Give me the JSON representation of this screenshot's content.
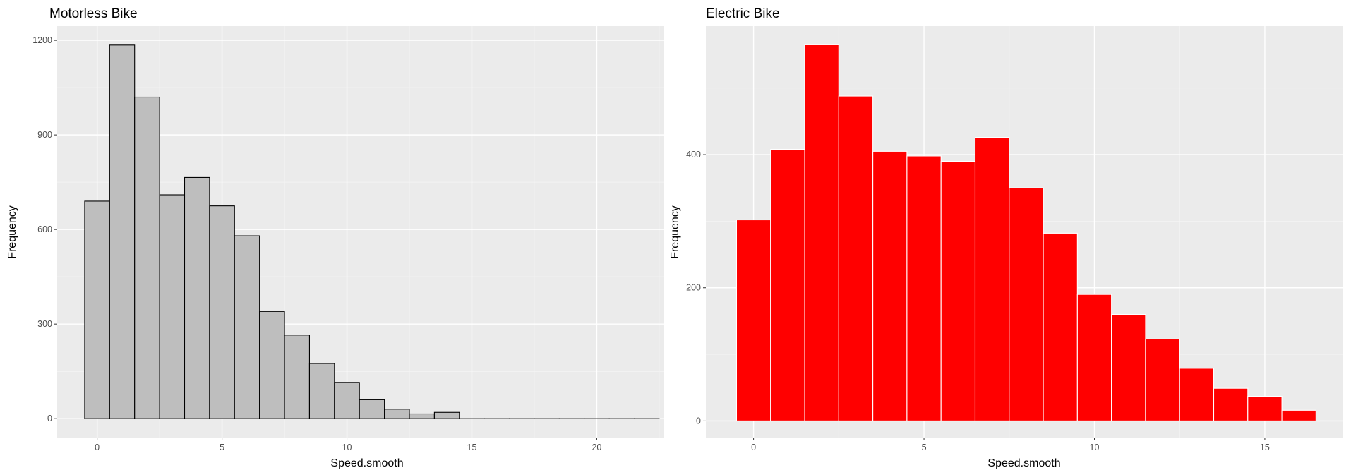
{
  "colors": {
    "panel_bg": "#ebebeb",
    "grid_major": "#ffffff",
    "grid_minor": "#f5f5f5",
    "tick_text": "#4d4d4d"
  },
  "chart_data": [
    {
      "type": "histogram",
      "title": "Motorless Bike",
      "xlabel": "Speed.smooth",
      "ylabel": "Frequency",
      "bin_width": 1,
      "bin_centers": [
        0,
        1,
        2,
        3,
        4,
        5,
        6,
        7,
        8,
        9,
        10,
        11,
        12,
        13,
        14,
        15,
        16,
        17,
        18,
        19,
        20,
        21,
        22
      ],
      "values": [
        690,
        1185,
        1020,
        710,
        765,
        675,
        580,
        340,
        265,
        175,
        115,
        60,
        30,
        15,
        20,
        0,
        0,
        0,
        0,
        0,
        0,
        0,
        0
      ],
      "xlim": [
        -1.6,
        22.7
      ],
      "ylim": [
        -60,
        1245
      ],
      "xticks": [
        0,
        5,
        10,
        15,
        20
      ],
      "yticks": [
        0,
        300,
        600,
        900,
        1200
      ],
      "fill": "#bebebe",
      "stroke": "#000000",
      "grid": true
    },
    {
      "type": "histogram",
      "title": "Electric Bike",
      "xlabel": "Speed.smooth",
      "ylabel": "Frequency",
      "bin_width": 1,
      "bin_centers": [
        0,
        1,
        2,
        3,
        4,
        5,
        6,
        7,
        8,
        9,
        10,
        11,
        12,
        13,
        14,
        15,
        16
      ],
      "values": [
        302,
        408,
        565,
        488,
        405,
        398,
        390,
        426,
        350,
        282,
        190,
        160,
        123,
        79,
        49,
        37,
        16
      ],
      "xlim": [
        -1.4,
        17.3
      ],
      "ylim": [
        -25,
        593
      ],
      "xticks": [
        0,
        5,
        10,
        15
      ],
      "yticks": [
        0,
        200,
        400
      ],
      "fill": "#ff0000",
      "stroke": "#ffffff",
      "grid": true
    }
  ]
}
